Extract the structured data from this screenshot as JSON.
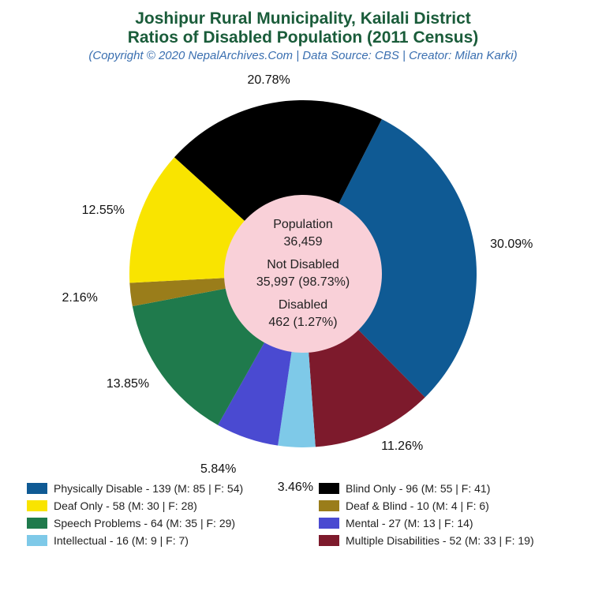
{
  "title": {
    "line1": "Joshipur Rural Municipality, Kailali District",
    "line2": "Ratios of Disabled Population (2011 Census)",
    "subtitle": "(Copyright © 2020 NepalArchives.Com | Data Source: CBS | Creator: Milan Karki)",
    "title_color": "#1a5c3a",
    "subtitle_color": "#3a6fb0",
    "title_fontsize": 21,
    "subtitle_fontsize": 15
  },
  "chart": {
    "type": "pie",
    "background_color": "#ffffff",
    "outer_radius": 220,
    "inner_radius": 100,
    "inner_fill": "#f9d0d8",
    "start_angle_deg": -63,
    "label_fontsize": 16,
    "slices": [
      {
        "key": "physical",
        "label": "30.09%",
        "value": 30.09,
        "color": "#0f5a94"
      },
      {
        "key": "multiple",
        "label": "11.26%",
        "value": 11.26,
        "color": "#7d1a2c"
      },
      {
        "key": "intellect",
        "label": "3.46%",
        "value": 3.46,
        "color": "#7ec9e8"
      },
      {
        "key": "mental",
        "label": "5.84%",
        "value": 5.84,
        "color": "#4a4ad1"
      },
      {
        "key": "speech",
        "label": "13.85%",
        "value": 13.85,
        "color": "#1f7a4c"
      },
      {
        "key": "deafblind",
        "label": "2.16%",
        "value": 2.16,
        "color": "#9a7d1a"
      },
      {
        "key": "deaf",
        "label": "12.55%",
        "value": 12.55,
        "color": "#f9e400"
      },
      {
        "key": "blind",
        "label": "20.78%",
        "value": 20.78,
        "color": "#000000"
      }
    ]
  },
  "center": {
    "pop_label": "Population",
    "pop_value": "36,459",
    "notdis_label": "Not Disabled",
    "notdis_value": "35,997 (98.73%)",
    "dis_label": "Disabled",
    "dis_value": "462 (1.27%)"
  },
  "legend": {
    "fontsize": 14,
    "swatch_w": 26,
    "swatch_h": 14,
    "items": [
      {
        "color": "#0f5a94",
        "text": "Physically Disable - 139 (M: 85 | F: 54)"
      },
      {
        "color": "#000000",
        "text": "Blind Only - 96 (M: 55 | F: 41)"
      },
      {
        "color": "#f9e400",
        "text": "Deaf Only - 58 (M: 30 | F: 28)"
      },
      {
        "color": "#9a7d1a",
        "text": "Deaf & Blind - 10 (M: 4 | F: 6)"
      },
      {
        "color": "#1f7a4c",
        "text": "Speech Problems - 64 (M: 35 | F: 29)"
      },
      {
        "color": "#4a4ad1",
        "text": "Mental - 27 (M: 13 | F: 14)"
      },
      {
        "color": "#7ec9e8",
        "text": "Intellectual - 16 (M: 9 | F: 7)"
      },
      {
        "color": "#7d1a2c",
        "text": "Multiple Disabilities - 52 (M: 33 | F: 19)"
      }
    ]
  }
}
